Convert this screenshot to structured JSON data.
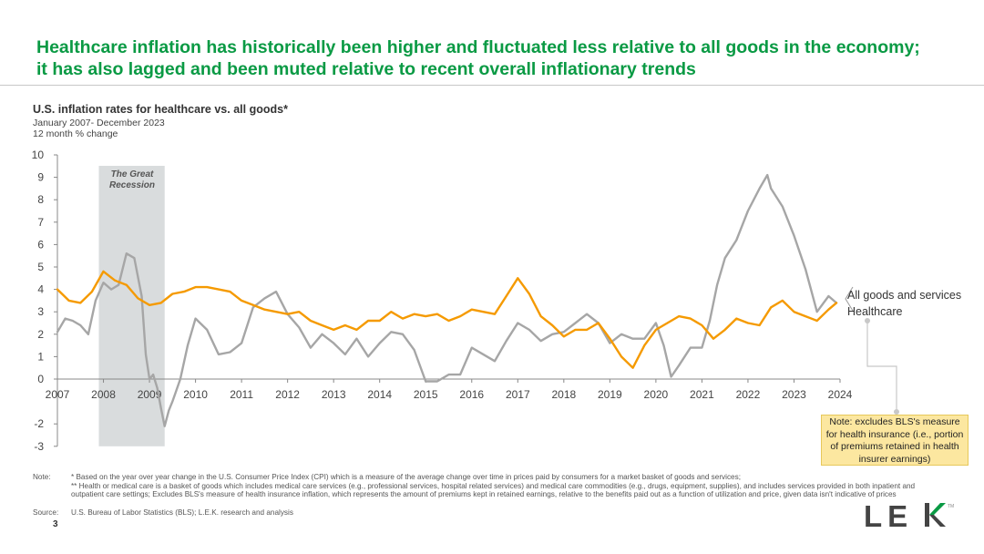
{
  "headline": {
    "line1": "Healthcare inflation has historically been higher and fluctuated less relative to all goods in the economy;",
    "line2": "it has also lagged and been muted relative to recent overall inflationary trends"
  },
  "chart_title": "U.S. inflation rates for healthcare vs. all goods*",
  "chart_subtitle1": "January 2007- December 2023",
  "chart_subtitle2": "12 month % change",
  "recession_label_line1": "The Great",
  "recession_label_line2": "Recession",
  "note_box": "Note: excludes BLS's measure for health insurance (i.e., portion of premiums retained in health insurer earnings)",
  "footnotes": {
    "note_label": "Note:",
    "note1": "* Based on the year over year change in the U.S. Consumer Price Index (CPI) which is a measure of the average change over time in prices paid by consumers for a market basket of goods and services;",
    "note2": "** Health or medical care is a basket of goods which includes medical care services (e.g., professional services, hospital related services) and medical care commodities (e.g., drugs, equipment, supplies), and includes services provided in both inpatient and outpatient care settings; Excludes BLS's measure of health insurance inflation, which represents the amount of premiums kept in retained earnings, relative to the benefits paid out as a function of utilization and price, given data isn't indicative of prices",
    "source_label": "Source:",
    "source": "U.S. Bureau of Labor Statistics (BLS); L.E.K. research and analysis"
  },
  "page_number": "3",
  "logo_text": "LEK",
  "logo_tm": "TM",
  "colors": {
    "headline": "#0a9a44",
    "healthcare": "#f59a00",
    "all_goods": "#a6a6a6",
    "recession_band": "#d9dcdd",
    "note_box": "#fce7a0"
  },
  "chart_data": {
    "type": "line",
    "x_ticks": [
      "2007",
      "2008",
      "2009",
      "2010",
      "2011",
      "2012",
      "2013",
      "2014",
      "2015",
      "2016",
      "2017",
      "2018",
      "2019",
      "2020",
      "2021",
      "2022",
      "2023",
      "2024"
    ],
    "y_ticks": [
      10,
      9,
      8,
      7,
      6,
      5,
      4,
      3,
      2,
      1,
      0,
      -2,
      -3
    ],
    "ylim": [
      -3,
      10
    ],
    "xlim": [
      2007,
      2024
    ],
    "shaded_region": {
      "label": "The Great Recession",
      "x_start": 2007.9,
      "x_end": 2009.33
    },
    "series": [
      {
        "name": "All goods and services",
        "color": "#a6a6a6",
        "x": [
          2007.0,
          2007.17,
          2007.33,
          2007.5,
          2007.67,
          2007.83,
          2008.0,
          2008.17,
          2008.33,
          2008.5,
          2008.67,
          2008.83,
          2008.92,
          2009.0,
          2009.08,
          2009.17,
          2009.25,
          2009.33,
          2009.42,
          2009.5,
          2009.67,
          2009.83,
          2010.0,
          2010.25,
          2010.5,
          2010.75,
          2011.0,
          2011.25,
          2011.5,
          2011.75,
          2012.0,
          2012.25,
          2012.5,
          2012.75,
          2013.0,
          2013.25,
          2013.5,
          2013.75,
          2014.0,
          2014.25,
          2014.5,
          2014.75,
          2015.0,
          2015.25,
          2015.5,
          2015.75,
          2016.0,
          2016.25,
          2016.5,
          2016.75,
          2017.0,
          2017.25,
          2017.5,
          2017.75,
          2018.0,
          2018.25,
          2018.5,
          2018.75,
          2019.0,
          2019.25,
          2019.5,
          2019.75,
          2020.0,
          2020.17,
          2020.33,
          2020.5,
          2020.75,
          2021.0,
          2021.17,
          2021.33,
          2021.5,
          2021.75,
          2022.0,
          2022.25,
          2022.42,
          2022.5,
          2022.75,
          2023.0,
          2023.25,
          2023.5,
          2023.75,
          2023.92
        ],
        "values": [
          2.1,
          2.7,
          2.6,
          2.4,
          2.0,
          3.5,
          4.3,
          4.0,
          4.2,
          5.6,
          5.4,
          3.7,
          1.1,
          0.0,
          0.2,
          -0.4,
          -1.3,
          -2.1,
          -1.4,
          -1.0,
          0.0,
          1.5,
          2.7,
          2.2,
          1.1,
          1.2,
          1.6,
          3.2,
          3.6,
          3.9,
          2.9,
          2.3,
          1.4,
          2.0,
          1.6,
          1.1,
          1.8,
          1.0,
          1.6,
          2.1,
          2.0,
          1.3,
          -0.1,
          -0.1,
          0.2,
          0.2,
          1.4,
          1.1,
          0.8,
          1.7,
          2.5,
          2.2,
          1.7,
          2.0,
          2.1,
          2.5,
          2.9,
          2.5,
          1.6,
          2.0,
          1.8,
          1.8,
          2.5,
          1.5,
          0.1,
          0.6,
          1.4,
          1.4,
          2.6,
          4.2,
          5.4,
          6.2,
          7.5,
          8.5,
          9.1,
          8.5,
          7.7,
          6.4,
          4.9,
          3.0,
          3.7,
          3.4
        ]
      },
      {
        "name": "Healthcare",
        "color": "#f59a00",
        "x": [
          2007.0,
          2007.25,
          2007.5,
          2007.75,
          2008.0,
          2008.25,
          2008.5,
          2008.75,
          2009.0,
          2009.25,
          2009.5,
          2009.75,
          2010.0,
          2010.25,
          2010.5,
          2010.75,
          2011.0,
          2011.25,
          2011.5,
          2011.75,
          2012.0,
          2012.25,
          2012.5,
          2012.75,
          2013.0,
          2013.25,
          2013.5,
          2013.75,
          2014.0,
          2014.25,
          2014.5,
          2014.75,
          2015.0,
          2015.25,
          2015.5,
          2015.75,
          2016.0,
          2016.25,
          2016.5,
          2016.75,
          2017.0,
          2017.25,
          2017.5,
          2017.75,
          2018.0,
          2018.25,
          2018.5,
          2018.75,
          2019.0,
          2019.25,
          2019.5,
          2019.75,
          2020.0,
          2020.25,
          2020.5,
          2020.75,
          2021.0,
          2021.25,
          2021.5,
          2021.75,
          2022.0,
          2022.25,
          2022.5,
          2022.75,
          2023.0,
          2023.25,
          2023.5,
          2023.75,
          2023.92
        ],
        "values": [
          4.0,
          3.5,
          3.4,
          3.9,
          4.8,
          4.4,
          4.2,
          3.6,
          3.3,
          3.4,
          3.8,
          3.9,
          4.1,
          4.1,
          4.0,
          3.9,
          3.5,
          3.3,
          3.1,
          3.0,
          2.9,
          3.0,
          2.6,
          2.4,
          2.2,
          2.4,
          2.2,
          2.6,
          2.6,
          3.0,
          2.7,
          2.9,
          2.8,
          2.9,
          2.6,
          2.8,
          3.1,
          3.0,
          2.9,
          3.7,
          4.5,
          3.8,
          2.8,
          2.4,
          1.9,
          2.2,
          2.2,
          2.5,
          1.8,
          1.0,
          0.5,
          1.5,
          2.2,
          2.5,
          2.8,
          2.7,
          2.4,
          1.8,
          2.2,
          2.7,
          2.5,
          2.4,
          3.2,
          3.5,
          3.0,
          2.8,
          2.6,
          3.1,
          3.4
        ]
      }
    ],
    "series_labels": [
      "All goods and services",
      "Healthcare"
    ]
  }
}
